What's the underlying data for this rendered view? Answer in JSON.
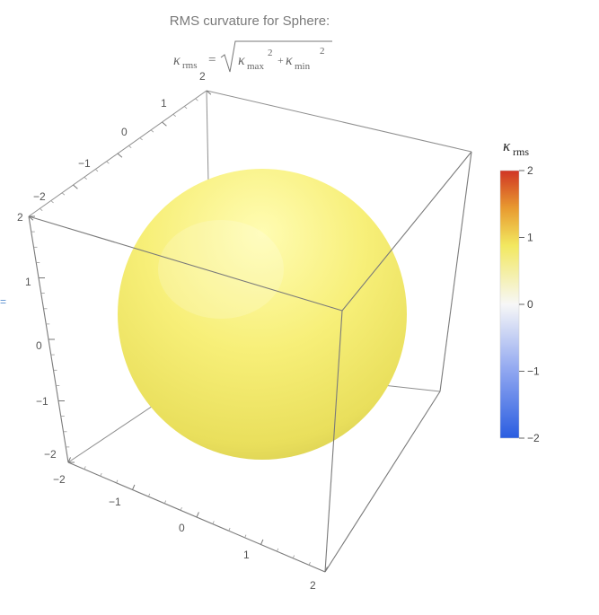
{
  "chart_data": {
    "type": "3d-surface",
    "title": "RMS curvature for Sphere:",
    "formula": {
      "lhs": "κ",
      "lhs_sub": "rms",
      "equals": "=",
      "term1": "κ",
      "term1_sub": "max",
      "term1_sup": "2",
      "plus": "+",
      "term2": "κ",
      "term2_sub": "min",
      "term2_sup": "2"
    },
    "surface": {
      "shape": "sphere",
      "radius": 1,
      "value_kappa_rms": 1.0,
      "color": "#f0ea72"
    },
    "axes": {
      "x": {
        "range": [
          -2,
          2
        ],
        "ticks": [
          "−2",
          "−1",
          "0",
          "1",
          "2"
        ]
      },
      "y": {
        "range": [
          -2,
          2
        ],
        "ticks": [
          "−2",
          "−1",
          "0",
          "1",
          "2"
        ]
      },
      "z": {
        "range": [
          -2,
          2
        ],
        "ticks": [
          "−2",
          "−1",
          "0",
          "1",
          "2"
        ]
      }
    },
    "legend": {
      "title": "κ",
      "title_sub": "rms",
      "range": [
        -2,
        2
      ],
      "ticks": [
        "2",
        "1",
        "0",
        "−1",
        "−2"
      ],
      "tick_values": [
        2,
        1,
        0,
        -1,
        -2
      ],
      "colormap": [
        "#2a5de0",
        "#7f9cf0",
        "#f7f7f7",
        "#f2e860",
        "#e89a30",
        "#d03524"
      ]
    },
    "side_marker": "="
  }
}
